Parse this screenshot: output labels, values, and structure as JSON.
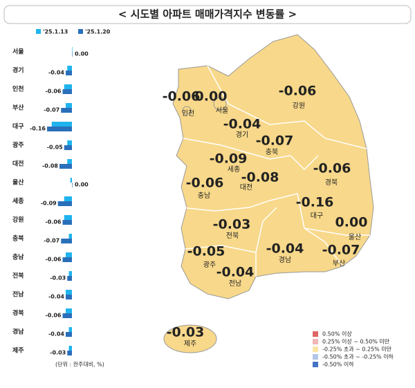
{
  "title": "< 시도별 아파트 매매가격지수 변동률 >",
  "chart_data": {
    "type": "hbar",
    "categories": [
      "서울",
      "경기",
      "인천",
      "부산",
      "대구",
      "광주",
      "대전",
      "울산",
      "세종",
      "강원",
      "충북",
      "충남",
      "전북",
      "전남",
      "경북",
      "경남",
      "제주"
    ],
    "series": [
      {
        "name": "'25.1.13",
        "color": "#1fb4ee",
        "values": [
          0.0,
          -0.03,
          -0.05,
          -0.04,
          -0.13,
          -0.03,
          -0.03,
          -0.01,
          -0.05,
          -0.05,
          -0.02,
          -0.04,
          -0.02,
          -0.04,
          -0.04,
          -0.02,
          -0.02
        ]
      },
      {
        "name": "'25.1.20",
        "color": "#2a6fba",
        "values": [
          0.0,
          -0.04,
          -0.06,
          -0.07,
          -0.16,
          -0.05,
          -0.08,
          0.0,
          -0.09,
          -0.06,
          -0.07,
          -0.06,
          -0.03,
          -0.04,
          -0.06,
          -0.04,
          -0.03
        ],
        "value_labels": [
          "0.00",
          "-0.04",
          "-0.06",
          "-0.07",
          "-0.16",
          "-0.05",
          "-0.08",
          "0.00",
          "-0.09",
          "-0.06",
          "-0.07",
          "-0.06",
          "-0.03",
          "-0.04",
          "-0.06",
          "-0.04",
          "-0.03"
        ]
      }
    ],
    "note": "(단위 : 전주대비, %)"
  },
  "map": {
    "fill": "#f8d88a",
    "legend": [
      {
        "label": "0.50% 이상",
        "color": "#e06666"
      },
      {
        "label": "0.25% 이상 ~ 0.50% 미만",
        "color": "#f4b6b6"
      },
      {
        "label": "-0.25% 초과 ~ 0.25% 미만",
        "color": "#fbe5a5"
      },
      {
        "label": "-0.50% 초과 ~ -0.25% 이하",
        "color": "#b4c6e7"
      },
      {
        "label": "-0.50% 이하",
        "color": "#4472c4"
      }
    ]
  }
}
